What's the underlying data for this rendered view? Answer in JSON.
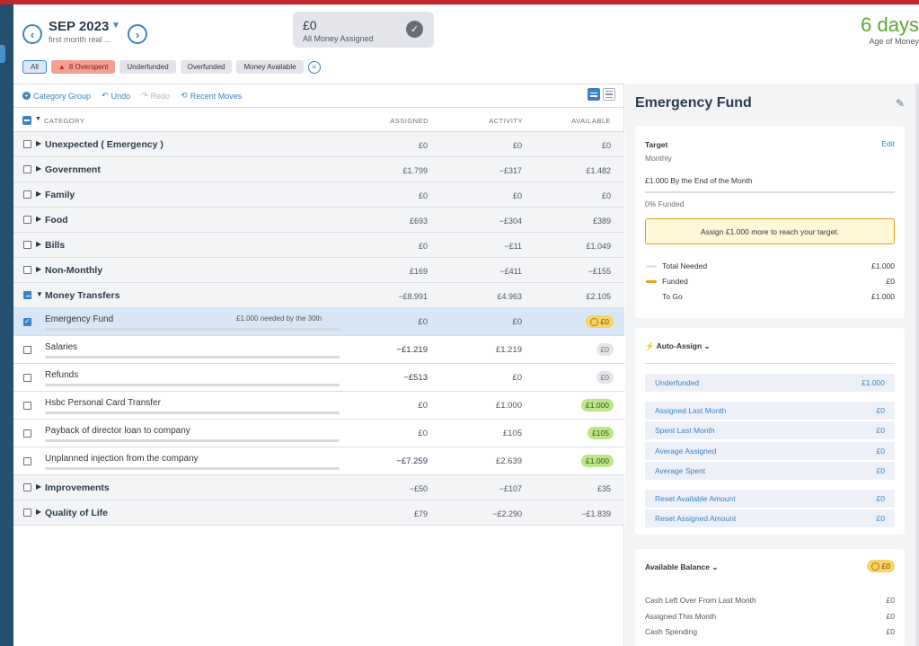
{
  "header": {
    "month": "SEP 2023",
    "month_note": "first month real ...",
    "assigned_amount": "£0",
    "assigned_label": "All Money Assigned",
    "age_of_money_value": "6 days",
    "age_of_money_label": "Age of Money"
  },
  "filters": {
    "all": "All",
    "overspent": "8 Overspent",
    "underfunded": "Underfunded",
    "overfunded": "Overfunded",
    "money_available": "Money Available"
  },
  "toolbar": {
    "category_group": "Category Group",
    "undo": "Undo",
    "redo": "Redo",
    "recent_moves": "Recent Moves"
  },
  "table": {
    "col_category": "CATEGORY",
    "col_assigned": "ASSIGNED",
    "col_activity": "ACTIVITY",
    "col_available": "AVAILABLE",
    "rows_top": [
      {
        "name": "Unexpected ( Emergency )",
        "assigned": "£0",
        "activity": "£0",
        "available": "£0"
      },
      {
        "name": "Government",
        "assigned": "£1.799",
        "activity": "−£317",
        "available": "£1.482"
      },
      {
        "name": "Family",
        "assigned": "£0",
        "activity": "£0",
        "available": "£0"
      },
      {
        "name": "Food",
        "assigned": "£693",
        "activity": "−£304",
        "available": "£389"
      },
      {
        "name": "Bills",
        "assigned": "£0",
        "activity": "−£11",
        "available": "£1.049"
      },
      {
        "name": "Non-Monthly",
        "assigned": "£169",
        "activity": "−£411",
        "available": "−£155"
      }
    ],
    "money_transfers": {
      "name": "Money Transfers",
      "assigned": "−£8.991",
      "activity": "£4.963",
      "available": "£2.105"
    },
    "categories": [
      {
        "name": "Emergency Fund",
        "note": "£1.000 needed by the 30th",
        "assigned": "£0",
        "activity": "£0",
        "available": "£0",
        "pill": "yellow"
      },
      {
        "name": "Salaries",
        "note": "",
        "assigned": "−£1.219",
        "activity": "£1.219",
        "available": "£0",
        "pill": "gray"
      },
      {
        "name": "Refunds",
        "note": "",
        "assigned": "−£513",
        "activity": "£0",
        "available": "£0",
        "pill": "gray"
      },
      {
        "name": "Hsbc Personal Card Transfer",
        "note": "",
        "assigned": "£0",
        "activity": "£1.000",
        "available": "£1.000",
        "pill": "green"
      },
      {
        "name": "Payback of director loan to company",
        "note": "",
        "assigned": "£0",
        "activity": "£105",
        "available": "£105",
        "pill": "green"
      },
      {
        "name": "Unplanned injection from the company",
        "note": "",
        "assigned": "−£7.259",
        "activity": "£2.639",
        "available": "£1.000",
        "pill": "green"
      }
    ],
    "rows_bottom": [
      {
        "name": "Improvements",
        "assigned": "−£50",
        "activity": "−£107",
        "available": "£35"
      },
      {
        "name": "Quality of Life",
        "assigned": "£79",
        "activity": "−£2.290",
        "available": "−£1.839"
      }
    ]
  },
  "inspector": {
    "title": "Emergency Fund",
    "target_label": "Target",
    "edit": "Edit",
    "target_freq": "Monthly",
    "target_desc": "£1.000 By the End of the Month",
    "funded_pct": "0% Funded",
    "assign_msg": "Assign £1.000 more to reach your target.",
    "total_needed_label": "Total Needed",
    "total_needed": "£1.000",
    "funded_label": "Funded",
    "funded": "£0",
    "to_go_label": "To Go",
    "to_go": "£1.000",
    "auto_assign": "Auto-Assign",
    "aa_rows": [
      {
        "label": "Underfunded",
        "value": "£1.000"
      },
      {
        "label": "Assigned Last Month",
        "value": "£0"
      },
      {
        "label": "Spent Last Month",
        "value": "£0"
      },
      {
        "label": "Average Assigned",
        "value": "£0"
      },
      {
        "label": "Average Spent",
        "value": "£0"
      },
      {
        "label": "Reset Available Amount",
        "value": "£0"
      },
      {
        "label": "Reset Assigned Amount",
        "value": "£0"
      }
    ],
    "available_balance": "Available Balance",
    "available_balance_value": "£0",
    "ab_rows": [
      {
        "label": "Cash Left Over From Last Month",
        "value": "£0"
      },
      {
        "label": "Assigned This Month",
        "value": "£0"
      },
      {
        "label": "Cash Spending",
        "value": "£0"
      }
    ]
  },
  "colors": {
    "accent": "#3b82c4",
    "brand_bar": "#c1272d",
    "age_green": "#5aa830",
    "pill_green": "#bde48a",
    "pill_yellow": "#f9d26a"
  }
}
